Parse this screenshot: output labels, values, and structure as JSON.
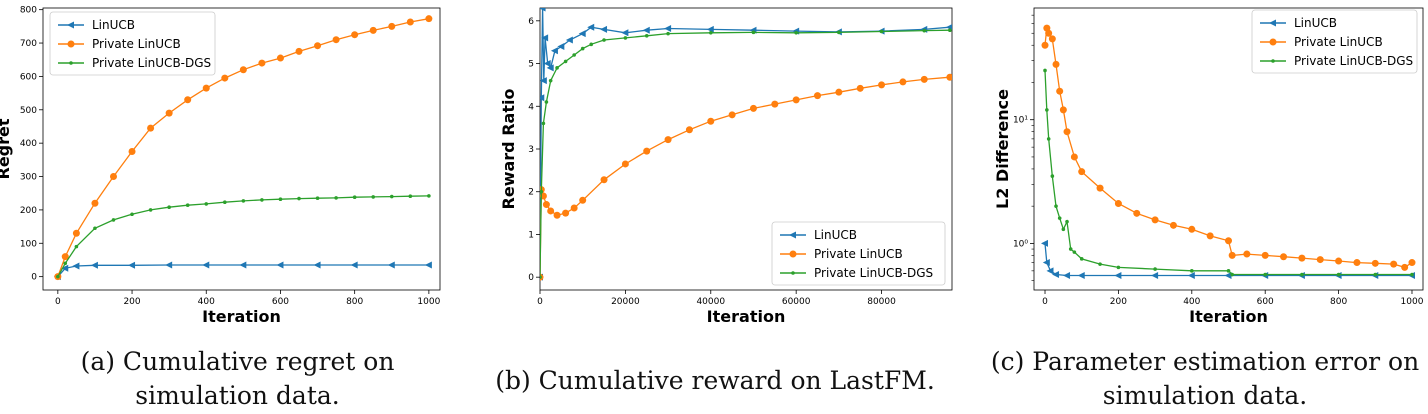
{
  "colors": {
    "linucb": "#1f77b4",
    "private": "#ff7f0e",
    "dgs": "#2ca02c"
  },
  "captions": {
    "a": "(a) Cumulative regret on simulation data.",
    "b": "(b) Cumulative reward on LastFM.",
    "c": "(c) Parameter estimation error on simulation data."
  },
  "chart_data": [
    {
      "id": "a",
      "type": "line",
      "title": "",
      "xlabel": "Iteration",
      "ylabel": "Regret",
      "xlim": [
        -40,
        1030
      ],
      "ylim": [
        -40,
        805
      ],
      "xticks": [
        0,
        200,
        400,
        600,
        800,
        1000
      ],
      "yticks": [
        0,
        100,
        200,
        300,
        400,
        500,
        600,
        700,
        800
      ],
      "ytick_labels": [
        "0",
        "100",
        "200",
        "300",
        "400",
        "500",
        "600",
        "700",
        "800"
      ],
      "legend": "top-left",
      "series": [
        {
          "name": "LinUCB",
          "key": "linucb",
          "marker": "triangle",
          "x": [
            0,
            20,
            50,
            100,
            200,
            300,
            400,
            500,
            600,
            700,
            800,
            900,
            1000
          ],
          "y": [
            0,
            25,
            32,
            34,
            34,
            35,
            35,
            35,
            35,
            35,
            35,
            35,
            35
          ]
        },
        {
          "name": "Private LinUCB",
          "key": "private",
          "marker": "circle",
          "x": [
            0,
            20,
            50,
            100,
            150,
            200,
            250,
            300,
            350,
            400,
            450,
            500,
            550,
            600,
            650,
            700,
            750,
            800,
            850,
            900,
            950,
            1000
          ],
          "y": [
            0,
            60,
            130,
            220,
            300,
            375,
            445,
            490,
            530,
            565,
            595,
            620,
            640,
            655,
            675,
            692,
            710,
            725,
            738,
            750,
            763,
            773
          ]
        },
        {
          "name": "Private LinUCB-DGS",
          "key": "dgs",
          "marker": "dot",
          "x": [
            0,
            20,
            50,
            100,
            150,
            200,
            250,
            300,
            350,
            400,
            450,
            500,
            550,
            600,
            650,
            700,
            750,
            800,
            850,
            900,
            950,
            1000
          ],
          "y": [
            0,
            40,
            90,
            145,
            170,
            187,
            200,
            208,
            214,
            218,
            223,
            227,
            230,
            232,
            234,
            235,
            236,
            238,
            239,
            240,
            241,
            242
          ]
        }
      ]
    },
    {
      "id": "b",
      "type": "line",
      "title": "",
      "xlabel": "Iteration",
      "ylabel": "Reward Ratio",
      "xlim": [
        0,
        96500
      ],
      "ylim": [
        -0.3,
        6.3
      ],
      "xticks": [
        0,
        20000,
        40000,
        60000,
        80000
      ],
      "yticks": [
        0,
        1,
        2,
        3,
        4,
        5,
        6
      ],
      "ytick_labels": [
        "0",
        "1",
        "2",
        "3",
        "4",
        "5",
        "6"
      ],
      "legend": "bottom-right",
      "series": [
        {
          "name": "LinUCB",
          "key": "linucb",
          "marker": "triangle",
          "x": [
            0,
            300,
            600,
            900,
            1200,
            1800,
            2500,
            3500,
            5000,
            7000,
            10000,
            12000,
            15000,
            20000,
            25000,
            30000,
            40000,
            50000,
            60000,
            70000,
            80000,
            90000,
            96000
          ],
          "y": [
            0,
            4.2,
            6.3,
            4.6,
            5.6,
            5.0,
            4.9,
            5.3,
            5.4,
            5.55,
            5.7,
            5.85,
            5.8,
            5.72,
            5.78,
            5.82,
            5.8,
            5.78,
            5.76,
            5.74,
            5.76,
            5.8,
            5.85
          ]
        },
        {
          "name": "Private LinUCB",
          "key": "private",
          "marker": "circle",
          "x": [
            0,
            300,
            800,
            1500,
            2500,
            4000,
            6000,
            8000,
            10000,
            15000,
            20000,
            25000,
            30000,
            35000,
            40000,
            45000,
            50000,
            55000,
            60000,
            65000,
            70000,
            75000,
            80000,
            85000,
            90000,
            96000
          ],
          "y": [
            0,
            2.05,
            1.9,
            1.7,
            1.55,
            1.45,
            1.5,
            1.62,
            1.8,
            2.28,
            2.65,
            2.95,
            3.22,
            3.45,
            3.65,
            3.8,
            3.95,
            4.05,
            4.15,
            4.25,
            4.33,
            4.42,
            4.5,
            4.57,
            4.63,
            4.68
          ]
        },
        {
          "name": "Private LinUCB-DGS",
          "key": "dgs",
          "marker": "dot",
          "x": [
            0,
            300,
            800,
            1500,
            2500,
            4000,
            6000,
            8000,
            10000,
            12000,
            15000,
            20000,
            25000,
            30000,
            40000,
            50000,
            60000,
            70000,
            80000,
            90000,
            96000
          ],
          "y": [
            0,
            2.0,
            3.6,
            4.1,
            4.6,
            4.9,
            5.05,
            5.2,
            5.35,
            5.45,
            5.55,
            5.6,
            5.65,
            5.7,
            5.72,
            5.73,
            5.72,
            5.73,
            5.75,
            5.77,
            5.78
          ]
        }
      ]
    },
    {
      "id": "c",
      "type": "line",
      "yscale": "log",
      "title": "",
      "xlabel": "Iteration",
      "ylabel": "L2 Difference",
      "xlim": [
        -30,
        1030
      ],
      "ylim": [
        0.42,
        80
      ],
      "xticks": [
        0,
        200,
        400,
        600,
        800,
        1000
      ],
      "yticks": [
        1,
        10
      ],
      "ytick_labels": [
        "10⁰",
        "10¹"
      ],
      "legend": "top-right",
      "series": [
        {
          "name": "LinUCB",
          "key": "linucb",
          "marker": "triangle",
          "x": [
            0,
            5,
            15,
            30,
            60,
            100,
            200,
            300,
            400,
            500,
            600,
            700,
            800,
            900,
            1000
          ],
          "y": [
            1.0,
            0.7,
            0.6,
            0.56,
            0.55,
            0.55,
            0.55,
            0.55,
            0.55,
            0.55,
            0.55,
            0.55,
            0.55,
            0.55,
            0.55
          ]
        },
        {
          "name": "Private LinUCB",
          "key": "private",
          "marker": "circle",
          "x": [
            0,
            5,
            10,
            20,
            30,
            40,
            50,
            60,
            80,
            100,
            150,
            200,
            250,
            300,
            350,
            400,
            450,
            500,
            510,
            550,
            600,
            650,
            700,
            750,
            800,
            850,
            900,
            950,
            980,
            1000
          ],
          "y": [
            40,
            55,
            50,
            45,
            28,
            17,
            12,
            8,
            5,
            3.8,
            2.8,
            2.1,
            1.75,
            1.55,
            1.4,
            1.3,
            1.15,
            1.05,
            0.8,
            0.82,
            0.8,
            0.78,
            0.76,
            0.74,
            0.72,
            0.7,
            0.69,
            0.68,
            0.64,
            0.7
          ]
        },
        {
          "name": "Private LinUCB-DGS",
          "key": "dgs",
          "marker": "dot",
          "x": [
            0,
            5,
            10,
            20,
            30,
            40,
            50,
            60,
            70,
            80,
            100,
            150,
            200,
            300,
            400,
            500,
            510,
            600,
            700,
            800,
            900,
            1000
          ],
          "y": [
            25,
            12,
            7,
            3.5,
            2,
            1.6,
            1.3,
            1.5,
            0.9,
            0.85,
            0.75,
            0.68,
            0.64,
            0.62,
            0.6,
            0.6,
            0.56,
            0.56,
            0.56,
            0.56,
            0.56,
            0.56
          ]
        }
      ]
    }
  ]
}
